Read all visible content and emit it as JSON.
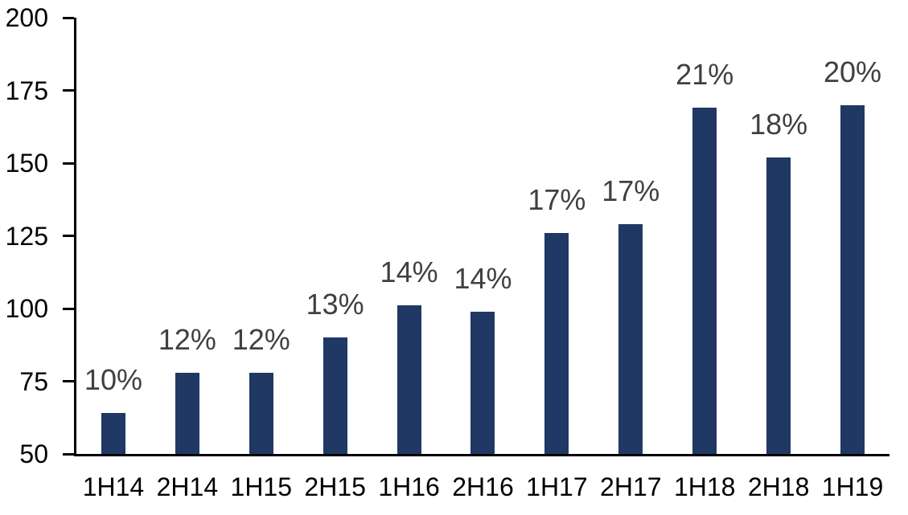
{
  "chart_data": {
    "type": "bar",
    "title": "",
    "xlabel": "",
    "ylabel": "",
    "categories": [
      "1H14",
      "2H14",
      "1H15",
      "2H15",
      "1H16",
      "2H16",
      "1H17",
      "2H17",
      "1H18",
      "2H18",
      "1H19"
    ],
    "values": [
      64,
      78,
      78,
      90,
      101,
      99,
      126,
      129,
      169,
      152,
      170
    ],
    "bar_labels": [
      "10%",
      "12%",
      "12%",
      "13%",
      "14%",
      "14%",
      "17%",
      "17%",
      "21%",
      "18%",
      "20%"
    ],
    "ylim": [
      50,
      200
    ],
    "yticks": [
      50,
      75,
      100,
      125,
      150,
      175,
      200
    ],
    "grid": false,
    "legend_position": "none",
    "colors": {
      "bar_fill": "#1f3864",
      "data_label": "#404040",
      "axis_line": "#000000",
      "axis_text": "#000000",
      "background": "#ffffff"
    }
  }
}
